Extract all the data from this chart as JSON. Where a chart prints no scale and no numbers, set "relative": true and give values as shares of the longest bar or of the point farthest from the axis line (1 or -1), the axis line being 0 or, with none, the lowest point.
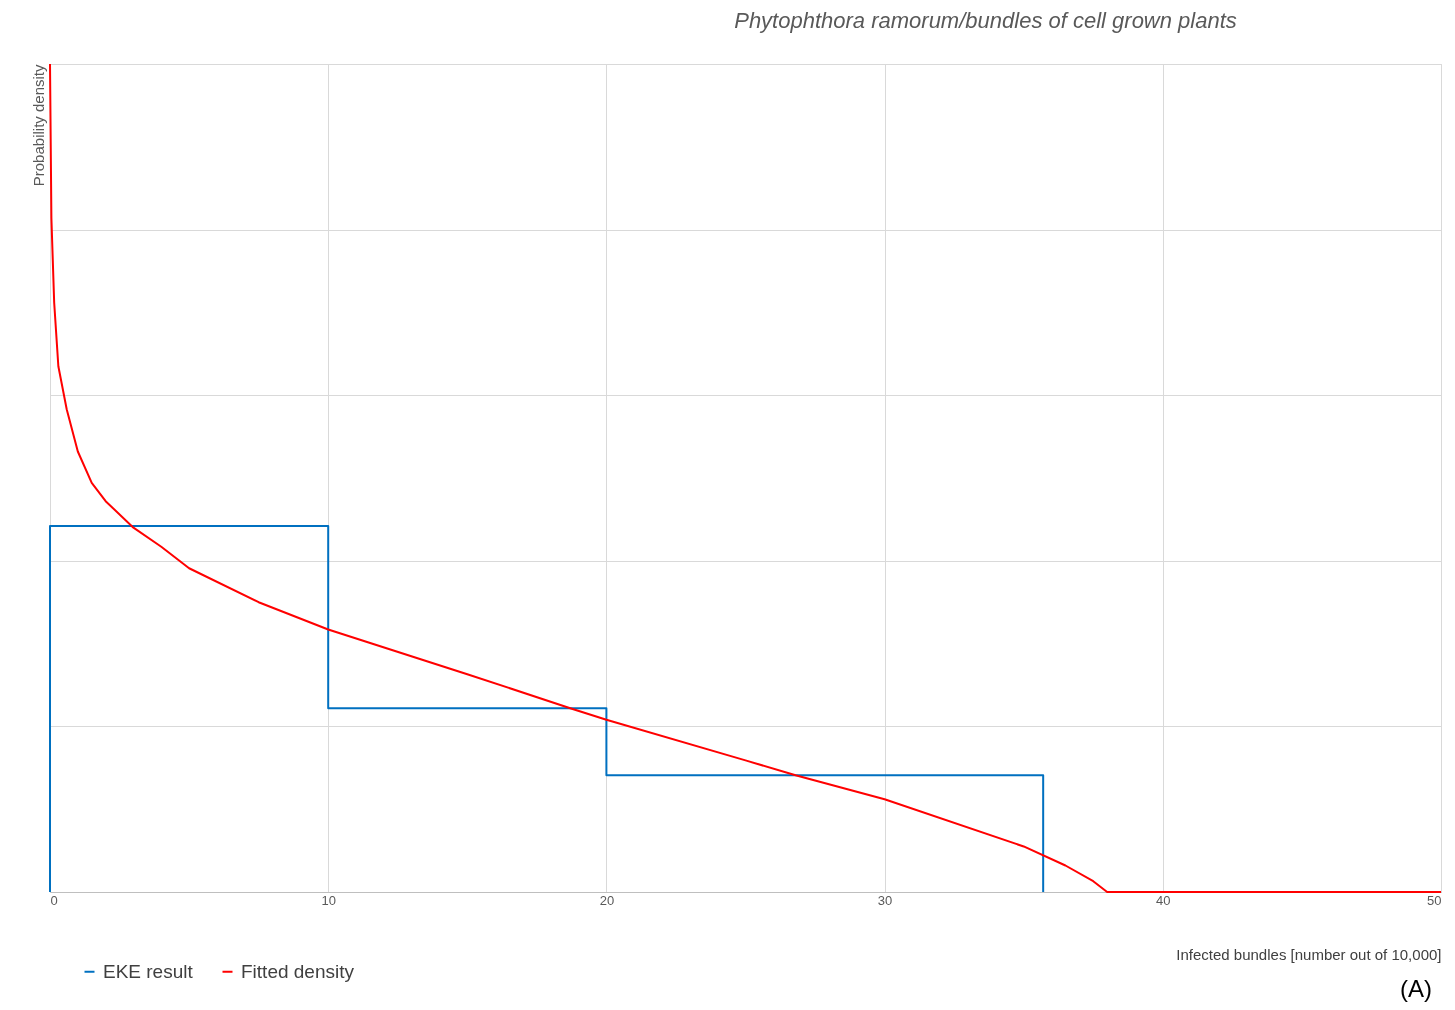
{
  "chart_data": {
    "type": "line",
    "title": "Phytophthora ramorum/bundles of cell grown plants",
    "xlabel": "Infected bundles [number out of 10,000]",
    "ylabel": "Probability density",
    "relative": true,
    "xlim": [
      0,
      50
    ],
    "xticks": [
      0,
      10,
      20,
      30,
      40,
      50
    ],
    "grid": true,
    "legend": "bottom left",
    "line_style": "solid",
    "marker": "none",
    "annotations": [
      "(A)"
    ],
    "series": [
      {
        "name": "EKE result",
        "color": "#0070c0",
        "x": [
          0,
          0,
          10,
          10,
          20,
          20,
          35.7,
          35.7
        ],
        "values": [
          0,
          0.442,
          0.442,
          0.222,
          0.222,
          0.141,
          0.141,
          0
        ]
      },
      {
        "name": "Fitted density",
        "color": "#ff0000",
        "x": [
          0,
          0.05,
          0.15,
          0.3,
          0.6,
          1,
          1.5,
          2,
          3,
          4,
          5,
          7.5,
          10,
          15,
          18.7,
          20,
          25,
          26.8,
          30,
          35,
          36.5,
          37.5,
          38,
          50
        ],
        "values": [
          1,
          0.814,
          0.712,
          0.635,
          0.583,
          0.532,
          0.494,
          0.472,
          0.44,
          0.417,
          0.391,
          0.35,
          0.317,
          0.263,
          0.222,
          0.208,
          0.159,
          0.141,
          0.112,
          0.055,
          0.032,
          0.013,
          0,
          0
        ]
      }
    ]
  }
}
